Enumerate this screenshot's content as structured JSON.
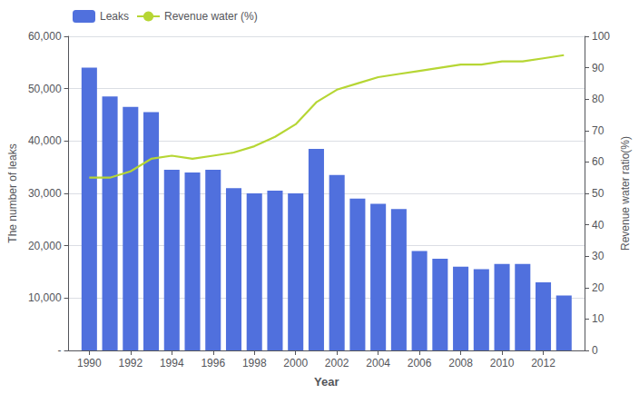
{
  "chart_data": {
    "type": "bar",
    "xlabel": "Year",
    "ylabel": "The number of leaks",
    "y2label": "Revenue water ratio(%)",
    "x": [
      1990,
      1991,
      1992,
      1993,
      1994,
      1995,
      1996,
      1997,
      1998,
      1999,
      2000,
      2001,
      2002,
      2003,
      2004,
      2005,
      2006,
      2007,
      2008,
      2009,
      2010,
      2011,
      2012,
      2013
    ],
    "series": [
      {
        "name": "Leaks",
        "type": "bar",
        "values": [
          54000,
          48500,
          46500,
          45500,
          34500,
          34000,
          34500,
          31000,
          30000,
          30500,
          30000,
          38500,
          33500,
          29000,
          28000,
          27000,
          19000,
          17500,
          16000,
          15500,
          16500,
          16500,
          13000,
          10500
        ]
      },
      {
        "name": "Revenue water (%)",
        "type": "line",
        "axis": "y2",
        "marker": "none",
        "values": [
          55,
          55,
          57,
          61,
          62,
          61,
          62,
          63,
          65,
          68,
          72,
          79,
          83,
          85,
          87,
          88,
          89,
          90,
          91,
          91,
          92,
          92,
          93,
          94
        ]
      }
    ],
    "xlim": [
      1989,
      2014
    ],
    "xticks": [
      1990,
      1992,
      1994,
      1996,
      1998,
      2000,
      2002,
      2004,
      2006,
      2008,
      2010,
      2012
    ],
    "ylim": [
      0,
      60000
    ],
    "yticks": [
      {
        "value": 0,
        "label": "-"
      },
      {
        "value": 10000,
        "label": "10,000"
      },
      {
        "value": 20000,
        "label": "20,000"
      },
      {
        "value": 30000,
        "label": "30,000"
      },
      {
        "value": 40000,
        "label": "40,000"
      },
      {
        "value": 50000,
        "label": "50,000"
      },
      {
        "value": 60000,
        "label": "60,000"
      }
    ],
    "y2lim": [
      0,
      100
    ],
    "y2ticks": [
      0,
      10,
      20,
      30,
      40,
      50,
      60,
      70,
      80,
      90,
      100
    ],
    "grid": true,
    "legend": "upper left"
  }
}
